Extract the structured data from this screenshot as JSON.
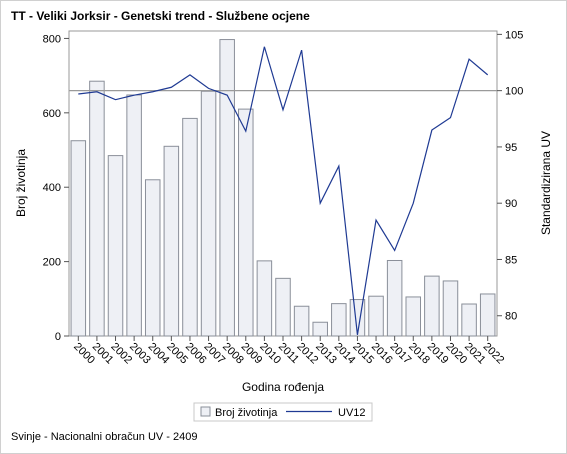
{
  "chart_data": {
    "type": "bar+line",
    "title": "TT - Veliki Jorksir - Genetski trend - Službene ocjene",
    "xlabel": "Godina rođenja",
    "ylabel_left": "Broj životinja",
    "ylabel_right": "Standardizirana UV",
    "categories": [
      "2000",
      "2001",
      "2002",
      "2003",
      "2004",
      "2005",
      "2006",
      "2007",
      "2008",
      "2009",
      "2010",
      "2011",
      "2012",
      "2013",
      "2014",
      "2015",
      "2016",
      "2017",
      "2018",
      "2019",
      "2020",
      "2021",
      "2022"
    ],
    "y_left_range": [
      0,
      820
    ],
    "y_left_ticks": [
      0,
      200,
      400,
      600,
      800
    ],
    "y_right_range": [
      78.2,
      105.3
    ],
    "y_right_ticks": [
      80,
      85,
      90,
      95,
      100,
      105
    ],
    "reference_line_right": 100,
    "grid": false,
    "legend_position": "bottom",
    "series": [
      {
        "name": "Broj životinja",
        "type": "bar",
        "axis": "left",
        "color": "#eef0f5",
        "stroke": "#8a8f99",
        "values": [
          525,
          685,
          485,
          648,
          420,
          510,
          585,
          658,
          797,
          610,
          202,
          155,
          80,
          37,
          87,
          98,
          107,
          203,
          105,
          161,
          148,
          86,
          113
        ]
      },
      {
        "name": "UV12",
        "type": "line",
        "axis": "right",
        "color": "#1f3a93",
        "values": [
          99.7,
          99.9,
          99.2,
          99.6,
          99.9,
          100.3,
          101.4,
          100.2,
          99.6,
          96.4,
          103.9,
          98.3,
          103.6,
          90.0,
          93.3,
          78.3,
          88.5,
          85.8,
          90.0,
          96.5,
          97.6,
          102.8,
          101.4
        ]
      }
    ]
  },
  "footnote": "Svinje - Nacionalni obračun UV - 2409"
}
